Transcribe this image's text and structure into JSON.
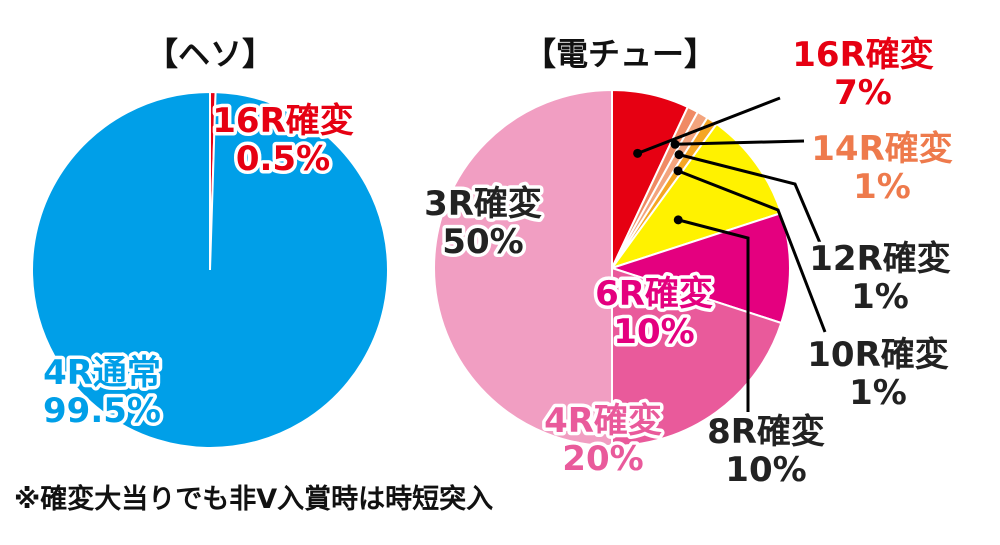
{
  "chart_data": [
    {
      "type": "pie",
      "title": "【ヘソ】",
      "slices": [
        {
          "label": "16R確変",
          "pct_label": "0.5%",
          "value": 0.5,
          "color": "#e60012",
          "text_color": "#e60012"
        },
        {
          "label": "4R通常",
          "pct_label": "99.5%",
          "value": 99.5,
          "color": "#009fe8",
          "text_color": "#009fe8"
        }
      ]
    },
    {
      "type": "pie",
      "title": "【電チュー】",
      "slices": [
        {
          "label": "16R確変",
          "pct_label": "7%",
          "value": 7,
          "color": "#e60012",
          "text_color": "#e60012"
        },
        {
          "label": "14R確変",
          "pct_label": "1%",
          "value": 1,
          "color": "#f08a64",
          "text_color": "#ee7a4c"
        },
        {
          "label": "12R確変",
          "pct_label": "1%",
          "value": 1,
          "color": "#f3a47d",
          "text_color": "#222222"
        },
        {
          "label": "10R確変",
          "pct_label": "1%",
          "value": 1,
          "color": "#f5a623",
          "text_color": "#222222"
        },
        {
          "label": "8R確変",
          "pct_label": "10%",
          "value": 10,
          "color": "#fff200",
          "text_color": "#222222"
        },
        {
          "label": "6R確変",
          "pct_label": "10%",
          "value": 10,
          "color": "#e4007f",
          "text_color": "#e4007f"
        },
        {
          "label": "4R確変",
          "pct_label": "20%",
          "value": 20,
          "color": "#e95a9b",
          "text_color": "#e95a9b"
        },
        {
          "label": "3R確変",
          "pct_label": "50%",
          "value": 50,
          "color": "#f19ec2",
          "text_color": "#222222"
        }
      ]
    }
  ],
  "footnote": "※確変大当りでも非V入賞時は時短突入",
  "colors": {
    "pie_border": "#ffffff",
    "leader_line": "#000000"
  }
}
